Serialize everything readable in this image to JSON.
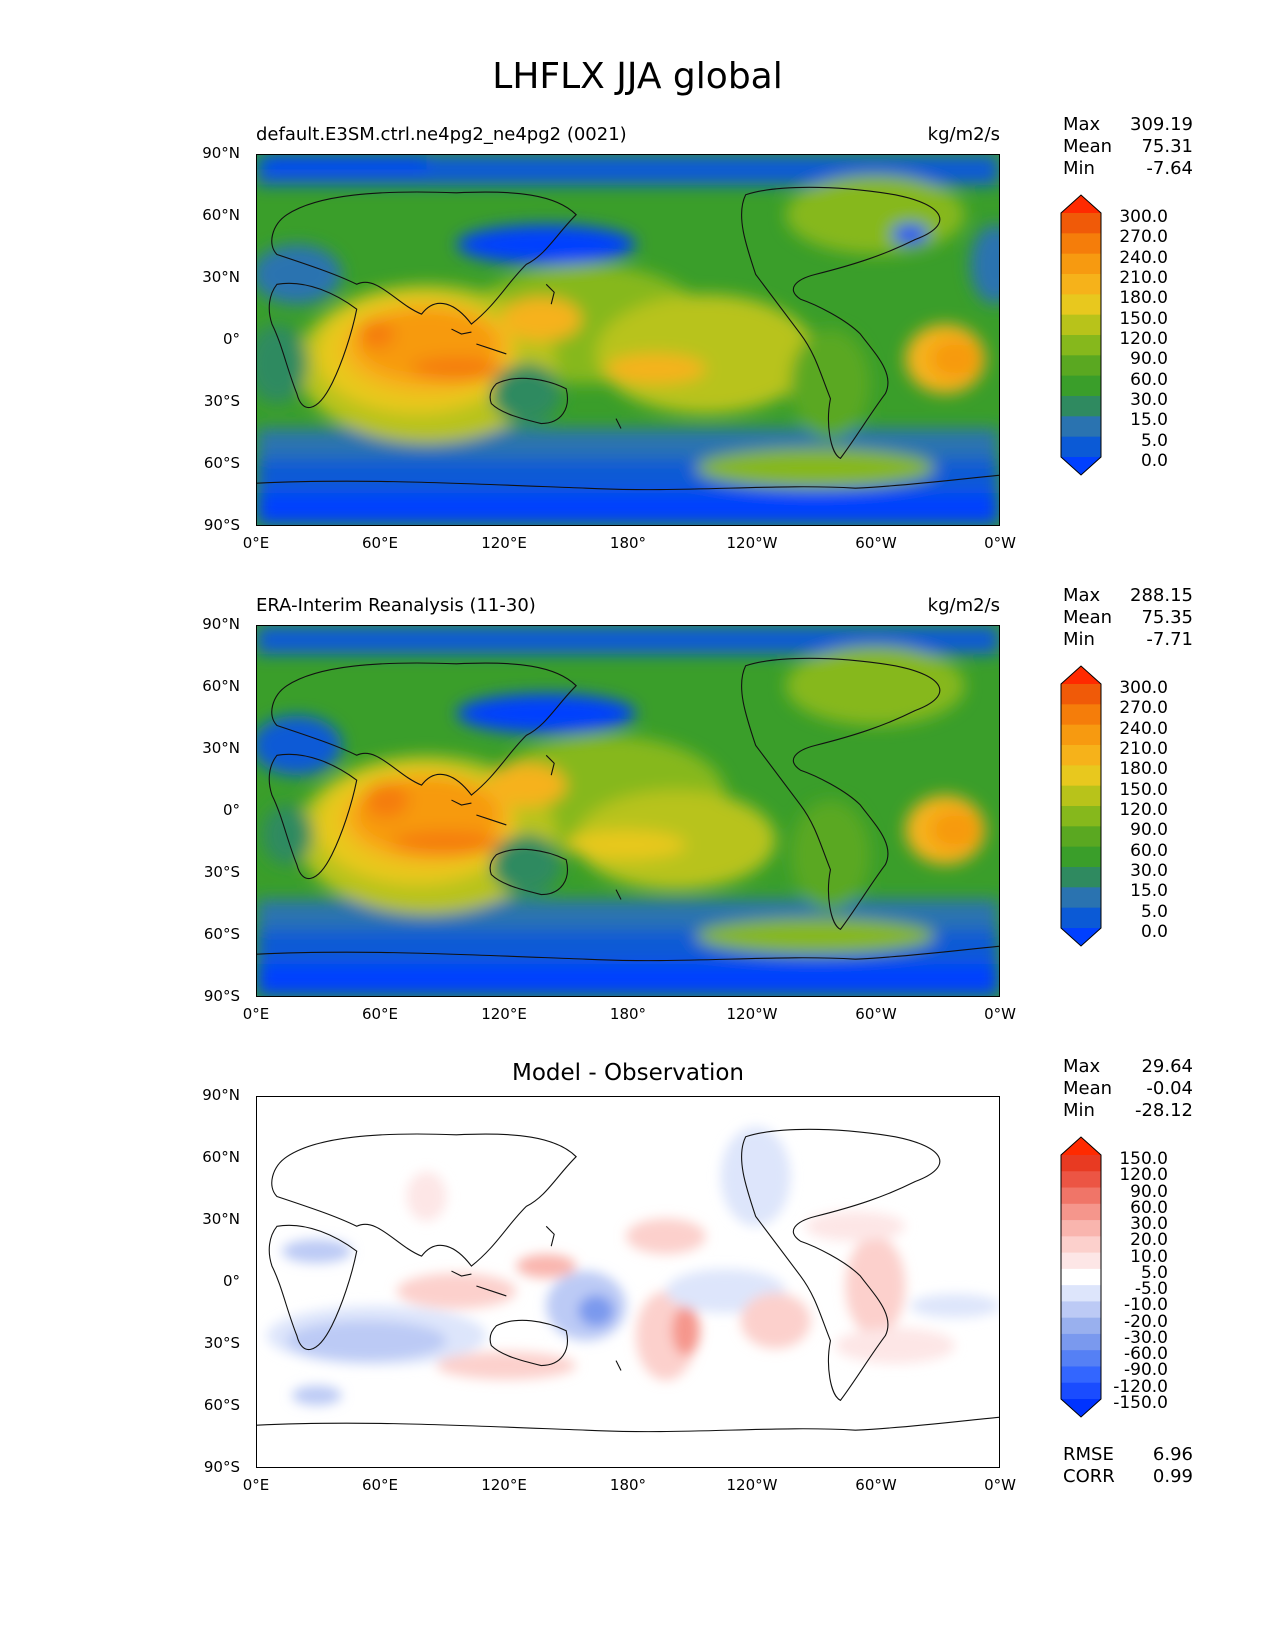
{
  "figure_title": "LHFLX JJA global",
  "map_axes": {
    "y_ticks": [
      "90°N",
      "60°N",
      "30°N",
      "0°",
      "30°S",
      "60°S",
      "90°S"
    ],
    "x_ticks": [
      "0°E",
      "60°E",
      "120°E",
      "180°",
      "120°W",
      "60°W",
      "0°W"
    ]
  },
  "panels": [
    {
      "left_title": "default.E3SM.ctrl.ne4pg2_ne4pg2 (0021)",
      "center_title": "",
      "units": "kg/m2/s",
      "stats": {
        "max_label": "Max",
        "max": "309.19",
        "mean_label": "Mean",
        "mean": "75.31",
        "min_label": "Min",
        "min": "-7.64"
      },
      "colorbar_levels": [
        "300.0",
        "270.0",
        "240.0",
        "210.0",
        "180.0",
        "150.0",
        "120.0",
        "90.0",
        "60.0",
        "30.0",
        "15.0",
        "5.0",
        "0.0"
      ],
      "colorbar_colors": [
        "#0040ff",
        "#0b5ad6",
        "#2a73b0",
        "#2f8a60",
        "#3a9e2a",
        "#5aa821",
        "#86b81c",
        "#b8c31a",
        "#e8c81e",
        "#f6b21a",
        "#f79a10",
        "#f57d0a",
        "#f05a08",
        "#ff2a00"
      ]
    },
    {
      "left_title": "ERA-Interim Reanalysis (11-30)",
      "center_title": "",
      "units": "kg/m2/s",
      "stats": {
        "max_label": "Max",
        "max": "288.15",
        "mean_label": "Mean",
        "mean": "75.35",
        "min_label": "Min",
        "min": "-7.71"
      },
      "colorbar_levels": [
        "300.0",
        "270.0",
        "240.0",
        "210.0",
        "180.0",
        "150.0",
        "120.0",
        "90.0",
        "60.0",
        "30.0",
        "15.0",
        "5.0",
        "0.0"
      ],
      "colorbar_colors": [
        "#0040ff",
        "#0b5ad6",
        "#2a73b0",
        "#2f8a60",
        "#3a9e2a",
        "#5aa821",
        "#86b81c",
        "#b8c31a",
        "#e8c81e",
        "#f6b21a",
        "#f79a10",
        "#f57d0a",
        "#f05a08",
        "#ff2a00"
      ]
    },
    {
      "left_title": "",
      "center_title": "Model - Observation",
      "units": "",
      "stats": {
        "max_label": "Max",
        "max": "29.64",
        "mean_label": "Mean",
        "mean": "-0.04",
        "min_label": "Min",
        "min": "-28.12"
      },
      "colorbar_levels": [
        "150.0",
        "120.0",
        "90.0",
        "60.0",
        "30.0",
        "20.0",
        "10.0",
        "5.0",
        "-5.0",
        "-10.0",
        "-20.0",
        "-30.0",
        "-60.0",
        "-90.0",
        "-120.0",
        "-150.0"
      ],
      "colorbar_colors": [
        "#0033ff",
        "#1a4cff",
        "#3366ff",
        "#5580f5",
        "#7a99ee",
        "#99b0ee",
        "#bccaf5",
        "#dde5fb",
        "#ffffff",
        "#fde6e6",
        "#fcd0cc",
        "#f9b5ae",
        "#f5968c",
        "#f07568",
        "#ec5544",
        "#e83a22",
        "#ff2a00"
      ],
      "metrics": {
        "rmse_label": "RMSE",
        "rmse": "6.96",
        "corr_label": "CORR",
        "corr": "0.99"
      }
    }
  ]
}
